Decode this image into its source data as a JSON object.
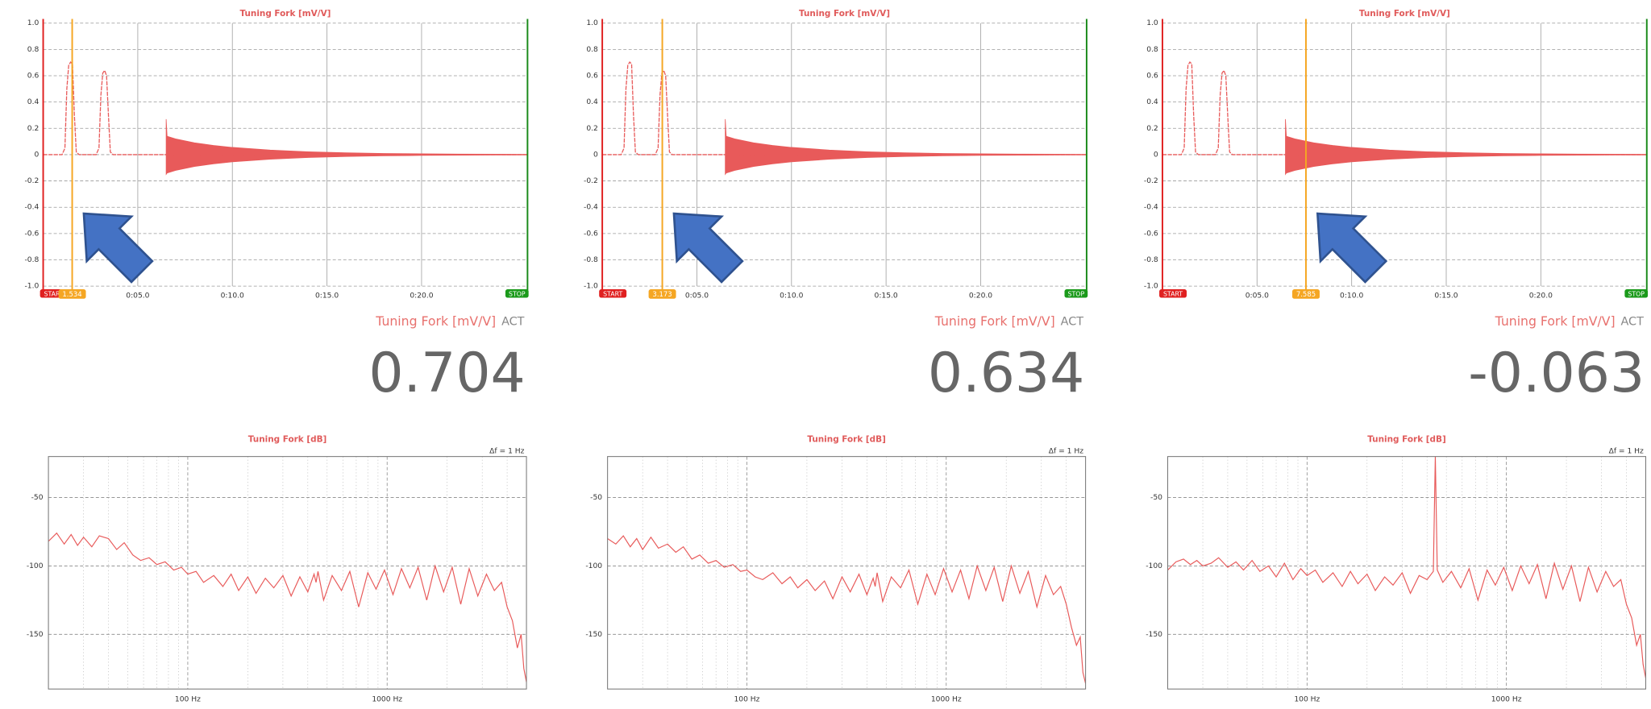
{
  "time_chart": {
    "type": "line",
    "title": "Tuning Fork [mV/V]",
    "color": "#e85a5a",
    "xlim": [
      0,
      25.6
    ],
    "ylim": [
      -1,
      1
    ],
    "xticks": [
      {
        "value": 5,
        "label": "0:05.0"
      },
      {
        "value": 10,
        "label": "0:10.0"
      },
      {
        "value": 15,
        "label": "0:15.0"
      },
      {
        "value": 20,
        "label": "0:20.0"
      }
    ],
    "yticks": [
      {
        "value": 1,
        "label": "1.0"
      },
      0.8,
      0.6,
      0.4,
      0.2,
      0,
      -0.2,
      -0.4,
      -0.6,
      -0.8,
      {
        "value": -1,
        "label": "-1.0"
      }
    ],
    "grid": true,
    "start_label": "START",
    "stop_label": "STOP",
    "series": {
      "x": [
        0,
        1.0,
        1.15,
        1.25,
        1.35,
        1.45,
        1.55,
        1.65,
        1.75,
        1.9,
        2.8,
        2.95,
        3.05,
        3.15,
        3.25,
        3.35,
        3.45,
        3.55,
        3.7,
        25.6
      ],
      "values": [
        0,
        0,
        0.05,
        0.5,
        0.68,
        0.704,
        0.69,
        0.3,
        0.02,
        0,
        0,
        0.05,
        0.45,
        0.62,
        0.64,
        0.6,
        0.3,
        0.02,
        0,
        0
      ]
    },
    "envelope": {
      "x": [
        6.5,
        6.55,
        7,
        8,
        9,
        10,
        12,
        14,
        16,
        18,
        20,
        22,
        24,
        25.6
      ],
      "upper": [
        0.27,
        0.14,
        0.12,
        0.09,
        0.07,
        0.055,
        0.035,
        0.022,
        0.014,
        0.009,
        0.006,
        0.004,
        0.003,
        0.002
      ],
      "lower": [
        -0.15,
        -0.14,
        -0.12,
        -0.09,
        -0.07,
        -0.055,
        -0.035,
        -0.022,
        -0.014,
        -0.009,
        -0.006,
        -0.004,
        -0.003,
        -0.002
      ]
    }
  },
  "spectrum": {
    "type": "line",
    "title": "Tuning Fork [dB]",
    "annotation": "Δf = 1 Hz",
    "color": "#e85a5a",
    "log_x": true,
    "xlim": [
      20,
      5000
    ],
    "ylim": [
      -190,
      -20
    ],
    "xticks": [
      {
        "value": 100,
        "label": "100 Hz"
      },
      {
        "value": 1000,
        "label": "1000 Hz"
      }
    ],
    "xminor": [
      30,
      40,
      50,
      60,
      70,
      80,
      90,
      200,
      300,
      400,
      500,
      600,
      700,
      800,
      900,
      2000,
      3000,
      4000
    ],
    "yticks": [
      -50,
      -100,
      -150
    ],
    "grid": true,
    "x": [
      20,
      22,
      24,
      26,
      28,
      30,
      33,
      36,
      40,
      44,
      48,
      53,
      58,
      64,
      70,
      77,
      85,
      93,
      100,
      110,
      120,
      135,
      150,
      165,
      180,
      200,
      220,
      245,
      270,
      300,
      330,
      365,
      400,
      430,
      440,
      450,
      480,
      530,
      590,
      650,
      720,
      800,
      880,
      970,
      1070,
      1180,
      1300,
      1430,
      1580,
      1740,
      1920,
      2120,
      2340,
      2580,
      2850,
      3150,
      3450,
      3750,
      4000,
      4250,
      4500,
      4700,
      4850,
      5000
    ]
  },
  "panels": [
    {
      "cursor": 1.534,
      "readout": {
        "label": "Tuning Fork [mV/V]",
        "mode": "ACT",
        "value": 0.704
      },
      "spectrum_values": [
        -82,
        -76,
        -84,
        -77,
        -85,
        -79,
        -86,
        -78,
        -80,
        -88,
        -83,
        -92,
        -96,
        -94,
        -99,
        -97,
        -103,
        -101,
        -106,
        -104,
        -112,
        -107,
        -115,
        -106,
        -118,
        -108,
        -120,
        -109,
        -116,
        -107,
        -122,
        -108,
        -119,
        -106,
        -112,
        -104,
        -125,
        -107,
        -118,
        -104,
        -130,
        -105,
        -117,
        -103,
        -121,
        -102,
        -116,
        -101,
        -125,
        -100,
        -119,
        -101,
        -128,
        -102,
        -122,
        -106,
        -118,
        -112,
        -130,
        -140,
        -160,
        -150,
        -175,
        -185
      ]
    },
    {
      "cursor": 3.173,
      "readout": {
        "label": "Tuning Fork [mV/V]",
        "mode": "ACT",
        "value": 0.634
      },
      "spectrum_values": [
        -80,
        -84,
        -78,
        -86,
        -80,
        -88,
        -79,
        -87,
        -84,
        -90,
        -86,
        -95,
        -92,
        -98,
        -96,
        -101,
        -99,
        -104,
        -103,
        -108,
        -110,
        -105,
        -113,
        -108,
        -116,
        -110,
        -118,
        -111,
        -124,
        -108,
        -119,
        -106,
        -121,
        -109,
        -115,
        -105,
        -126,
        -108,
        -116,
        -103,
        -128,
        -106,
        -121,
        -102,
        -119,
        -103,
        -124,
        -100,
        -118,
        -101,
        -126,
        -100,
        -120,
        -104,
        -130,
        -107,
        -121,
        -115,
        -128,
        -145,
        -158,
        -152,
        -178,
        -186
      ]
    },
    {
      "cursor": 7.585,
      "readout": {
        "label": "Tuning Fork [mV/V]",
        "mode": "ACT",
        "value": -0.063
      },
      "spectrum_values": [
        -103,
        -97,
        -95,
        -99,
        -96,
        -100,
        -98,
        -94,
        -101,
        -97,
        -103,
        -96,
        -104,
        -100,
        -108,
        -98,
        -110,
        -102,
        -107,
        -103,
        -112,
        -105,
        -115,
        -104,
        -113,
        -106,
        -118,
        -108,
        -114,
        -105,
        -120,
        -107,
        -110,
        -104,
        -20,
        -103,
        -112,
        -104,
        -116,
        -102,
        -125,
        -103,
        -114,
        -101,
        -118,
        -100,
        -113,
        -99,
        -124,
        -98,
        -117,
        -100,
        -126,
        -101,
        -119,
        -104,
        -115,
        -110,
        -128,
        -138,
        -158,
        -150,
        -172,
        -182
      ]
    }
  ]
}
